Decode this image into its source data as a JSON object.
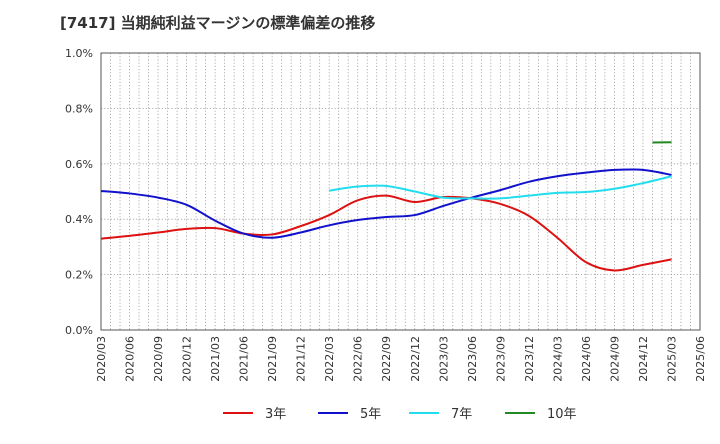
{
  "chart_data": {
    "type": "line",
    "title": "[7417]  当期純利益マージンの標準偏差の推移",
    "xlabel": "",
    "ylabel": "",
    "ylim": [
      0.0,
      1.0
    ],
    "yticks": [
      0.0,
      0.2,
      0.4,
      0.6,
      0.8,
      1.0
    ],
    "ytick_labels": [
      "0.0%",
      "0.2%",
      "0.4%",
      "0.6%",
      "0.8%",
      "1.0%"
    ],
    "grid": "dotted vertical per month, dotted horizontal per tick",
    "legend": "bottom-center",
    "x": [
      "2020/03",
      "2020/06",
      "2020/09",
      "2020/12",
      "2021/03",
      "2021/06",
      "2021/09",
      "2021/12",
      "2022/03",
      "2022/06",
      "2022/09",
      "2022/12",
      "2023/03",
      "2023/06",
      "2023/09",
      "2023/12",
      "2024/03",
      "2024/06",
      "2024/09",
      "2024/12",
      "2025/03",
      "2025/06"
    ],
    "series": [
      {
        "name": "3年",
        "color": "#dd1111",
        "points": [
          [
            "2020/03",
            0.33
          ],
          [
            "2020/06",
            0.34
          ],
          [
            "2020/09",
            0.352
          ],
          [
            "2020/12",
            0.365
          ],
          [
            "2021/03",
            0.368
          ],
          [
            "2021/06",
            0.348
          ],
          [
            "2021/09",
            0.345
          ],
          [
            "2021/12",
            0.375
          ],
          [
            "2022/03",
            0.415
          ],
          [
            "2022/06",
            0.468
          ],
          [
            "2022/09",
            0.485
          ],
          [
            "2022/12",
            0.462
          ],
          [
            "2023/03",
            0.48
          ],
          [
            "2023/06",
            0.475
          ],
          [
            "2023/09",
            0.455
          ],
          [
            "2023/12",
            0.412
          ],
          [
            "2024/03",
            0.333
          ],
          [
            "2024/06",
            0.245
          ],
          [
            "2024/09",
            0.215
          ],
          [
            "2024/12",
            0.235
          ],
          [
            "2025/03",
            0.255
          ]
        ]
      },
      {
        "name": "5年",
        "color": "#1111cc",
        "points": [
          [
            "2020/03",
            0.502
          ],
          [
            "2020/06",
            0.493
          ],
          [
            "2020/09",
            0.478
          ],
          [
            "2020/12",
            0.452
          ],
          [
            "2021/03",
            0.395
          ],
          [
            "2021/06",
            0.348
          ],
          [
            "2021/09",
            0.333
          ],
          [
            "2021/12",
            0.352
          ],
          [
            "2022/03",
            0.378
          ],
          [
            "2022/06",
            0.397
          ],
          [
            "2022/09",
            0.408
          ],
          [
            "2022/12",
            0.415
          ],
          [
            "2023/03",
            0.448
          ],
          [
            "2023/06",
            0.478
          ],
          [
            "2023/09",
            0.505
          ],
          [
            "2023/12",
            0.535
          ],
          [
            "2024/03",
            0.555
          ],
          [
            "2024/06",
            0.568
          ],
          [
            "2024/09",
            0.578
          ],
          [
            "2024/12",
            0.578
          ],
          [
            "2025/03",
            0.56
          ]
        ]
      },
      {
        "name": "7年",
        "color": "#22ddee",
        "points": [
          [
            "2022/03",
            0.503
          ],
          [
            "2022/06",
            0.518
          ],
          [
            "2022/09",
            0.52
          ],
          [
            "2022/12",
            0.5
          ],
          [
            "2023/03",
            0.478
          ],
          [
            "2023/06",
            0.475
          ],
          [
            "2023/09",
            0.475
          ],
          [
            "2023/12",
            0.485
          ],
          [
            "2024/03",
            0.495
          ],
          [
            "2024/06",
            0.498
          ],
          [
            "2024/09",
            0.51
          ],
          [
            "2024/12",
            0.53
          ],
          [
            "2025/03",
            0.555
          ]
        ]
      },
      {
        "name": "10年",
        "color": "#228822",
        "points": [
          [
            "2025/01",
            0.677
          ],
          [
            "2025/03",
            0.678
          ]
        ]
      }
    ]
  }
}
